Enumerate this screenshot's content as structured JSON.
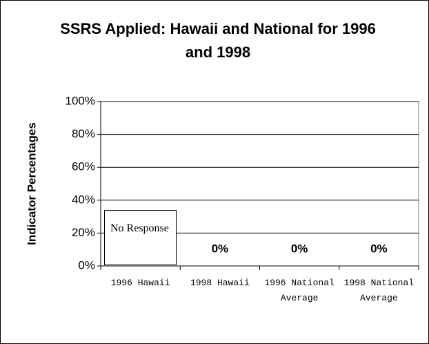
{
  "chart_data": {
    "type": "bar",
    "title": "SSRS Applied: Hawaii and National for 1996 and 1998",
    "y_label": "Indicator Percentages",
    "categories": [
      "1996 Hawaii",
      "1998 Hawaii",
      "1996 National Average",
      "1998 National Average"
    ],
    "values": [
      null,
      0,
      0,
      0
    ],
    "value_labels": [
      null,
      "0%",
      "0%",
      "0%"
    ],
    "annotation": "No Response",
    "color": "#000000",
    "ylim": [
      0,
      100
    ],
    "yticks": [
      {
        "value": 0,
        "label": "0%"
      },
      {
        "value": 20,
        "label": "20%"
      },
      {
        "value": 40,
        "label": "40%"
      },
      {
        "value": 60,
        "label": "60%"
      },
      {
        "value": 80,
        "label": "80%"
      },
      {
        "value": 100,
        "label": "100%"
      }
    ],
    "grid": true
  }
}
